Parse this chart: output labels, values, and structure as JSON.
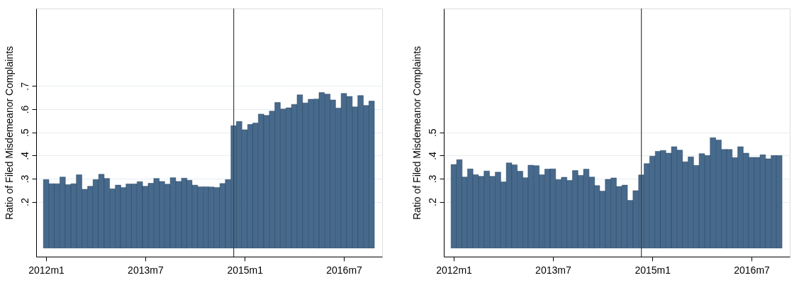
{
  "chart_data": [
    {
      "type": "bar",
      "ylabel": "Ratio of Filed Misdemeanor Complaints",
      "color": "#476a8c",
      "grid": "y",
      "x": [
        "2012-01",
        "2012-02",
        "2012-03",
        "2012-04",
        "2012-05",
        "2012-06",
        "2012-07",
        "2012-08",
        "2012-09",
        "2012-10",
        "2012-11",
        "2012-12",
        "2013-01",
        "2013-02",
        "2013-03",
        "2013-04",
        "2013-05",
        "2013-06",
        "2013-07",
        "2013-08",
        "2013-09",
        "2013-10",
        "2013-11",
        "2013-12",
        "2014-01",
        "2014-02",
        "2014-03",
        "2014-04",
        "2014-05",
        "2014-06",
        "2014-07",
        "2014-08",
        "2014-09",
        "2014-10",
        "2014-11",
        "2014-12",
        "2015-01",
        "2015-02",
        "2015-03",
        "2015-04",
        "2015-05",
        "2015-06",
        "2015-07",
        "2015-08",
        "2015-09",
        "2015-10",
        "2015-11",
        "2015-12",
        "2016-01",
        "2016-02",
        "2016-03",
        "2016-04",
        "2016-05",
        "2016-06",
        "2016-07",
        "2016-08",
        "2016-09",
        "2016-10",
        "2016-11",
        "2016-12"
      ],
      "values": [
        0.296,
        0.278,
        0.278,
        0.307,
        0.274,
        0.278,
        0.317,
        0.254,
        0.267,
        0.296,
        0.319,
        0.301,
        0.256,
        0.272,
        0.262,
        0.277,
        0.277,
        0.287,
        0.267,
        0.28,
        0.301,
        0.288,
        0.276,
        0.304,
        0.288,
        0.302,
        0.293,
        0.272,
        0.265,
        0.265,
        0.264,
        0.262,
        0.279,
        0.296,
        0.529,
        0.547,
        0.511,
        0.534,
        0.54,
        0.579,
        0.573,
        0.592,
        0.629,
        0.601,
        0.606,
        0.621,
        0.662,
        0.627,
        0.643,
        0.644,
        0.672,
        0.665,
        0.64,
        0.605,
        0.668,
        0.655,
        0.61,
        0.659,
        0.616,
        0.635
      ],
      "xlim": [
        "2011-11-07",
        "2017-01-28"
      ],
      "ylim": [
        -0.037,
        1.035
      ],
      "yticks": [
        {
          "value": 0.2,
          "label": ".2"
        },
        {
          "value": 0.3,
          "label": ".3"
        },
        {
          "value": 0.4,
          "label": ".4"
        },
        {
          "value": 0.5,
          "label": ".5"
        },
        {
          "value": 0.6,
          "label": ".6"
        },
        {
          "value": 0.7,
          "label": ".7"
        }
      ],
      "xticks": [
        {
          "value": "2012-01",
          "label": "2012m1"
        },
        {
          "value": "2013-07",
          "label": "2013m7"
        },
        {
          "value": "2015-01",
          "label": "2015m1"
        },
        {
          "value": "2016-07",
          "label": "2016m7"
        }
      ],
      "ref_lines": [
        {
          "axis": "x",
          "value": "2014-11",
          "color": "#404040"
        }
      ]
    },
    {
      "type": "bar",
      "ylabel": "Ratio of Filed Misdemeanor Complaints",
      "color": "#476a8c",
      "grid": "y",
      "x": [
        "2012-01",
        "2012-02",
        "2012-03",
        "2012-04",
        "2012-05",
        "2012-06",
        "2012-07",
        "2012-08",
        "2012-09",
        "2012-10",
        "2012-11",
        "2012-12",
        "2013-01",
        "2013-02",
        "2013-03",
        "2013-04",
        "2013-05",
        "2013-06",
        "2013-07",
        "2013-08",
        "2013-09",
        "2013-10",
        "2013-11",
        "2013-12",
        "2014-01",
        "2014-02",
        "2014-03",
        "2014-04",
        "2014-05",
        "2014-06",
        "2014-07",
        "2014-08",
        "2014-09",
        "2014-10",
        "2014-11",
        "2014-12",
        "2015-01",
        "2015-02",
        "2015-03",
        "2015-04",
        "2015-05",
        "2015-06",
        "2015-07",
        "2015-08",
        "2015-09",
        "2015-10",
        "2015-11",
        "2015-12",
        "2016-01",
        "2016-02",
        "2016-03",
        "2016-04",
        "2016-05",
        "2016-06",
        "2016-07",
        "2016-08",
        "2016-09",
        "2016-10",
        "2016-11",
        "2016-12"
      ],
      "values": [
        0.361,
        0.382,
        0.307,
        0.342,
        0.317,
        0.31,
        0.333,
        0.31,
        0.328,
        0.286,
        0.368,
        0.36,
        0.332,
        0.304,
        0.358,
        0.356,
        0.317,
        0.341,
        0.342,
        0.296,
        0.306,
        0.292,
        0.335,
        0.314,
        0.341,
        0.307,
        0.27,
        0.246,
        0.297,
        0.303,
        0.266,
        0.272,
        0.206,
        0.248,
        0.316,
        0.365,
        0.397,
        0.418,
        0.422,
        0.41,
        0.438,
        0.423,
        0.373,
        0.394,
        0.357,
        0.408,
        0.4,
        0.477,
        0.467,
        0.426,
        0.426,
        0.391,
        0.438,
        0.41,
        0.392,
        0.392,
        0.403,
        0.386,
        0.4,
        0.4
      ],
      "xlim": [
        "2011-11-07",
        "2017-01-28"
      ],
      "ylim": [
        -0.037,
        1.035
      ],
      "yticks": [
        {
          "value": 0.2,
          "label": ".2"
        },
        {
          "value": 0.3,
          "label": ".3"
        },
        {
          "value": 0.4,
          "label": ".4"
        },
        {
          "value": 0.5,
          "label": ".5"
        }
      ],
      "xticks": [
        {
          "value": "2012-01",
          "label": "2012m1"
        },
        {
          "value": "2013-07",
          "label": "2013m7"
        },
        {
          "value": "2015-01",
          "label": "2015m1"
        },
        {
          "value": "2016-07",
          "label": "2016m7"
        }
      ],
      "ref_lines": [
        {
          "axis": "x",
          "value": "2014-11",
          "color": "#404040"
        }
      ]
    }
  ]
}
